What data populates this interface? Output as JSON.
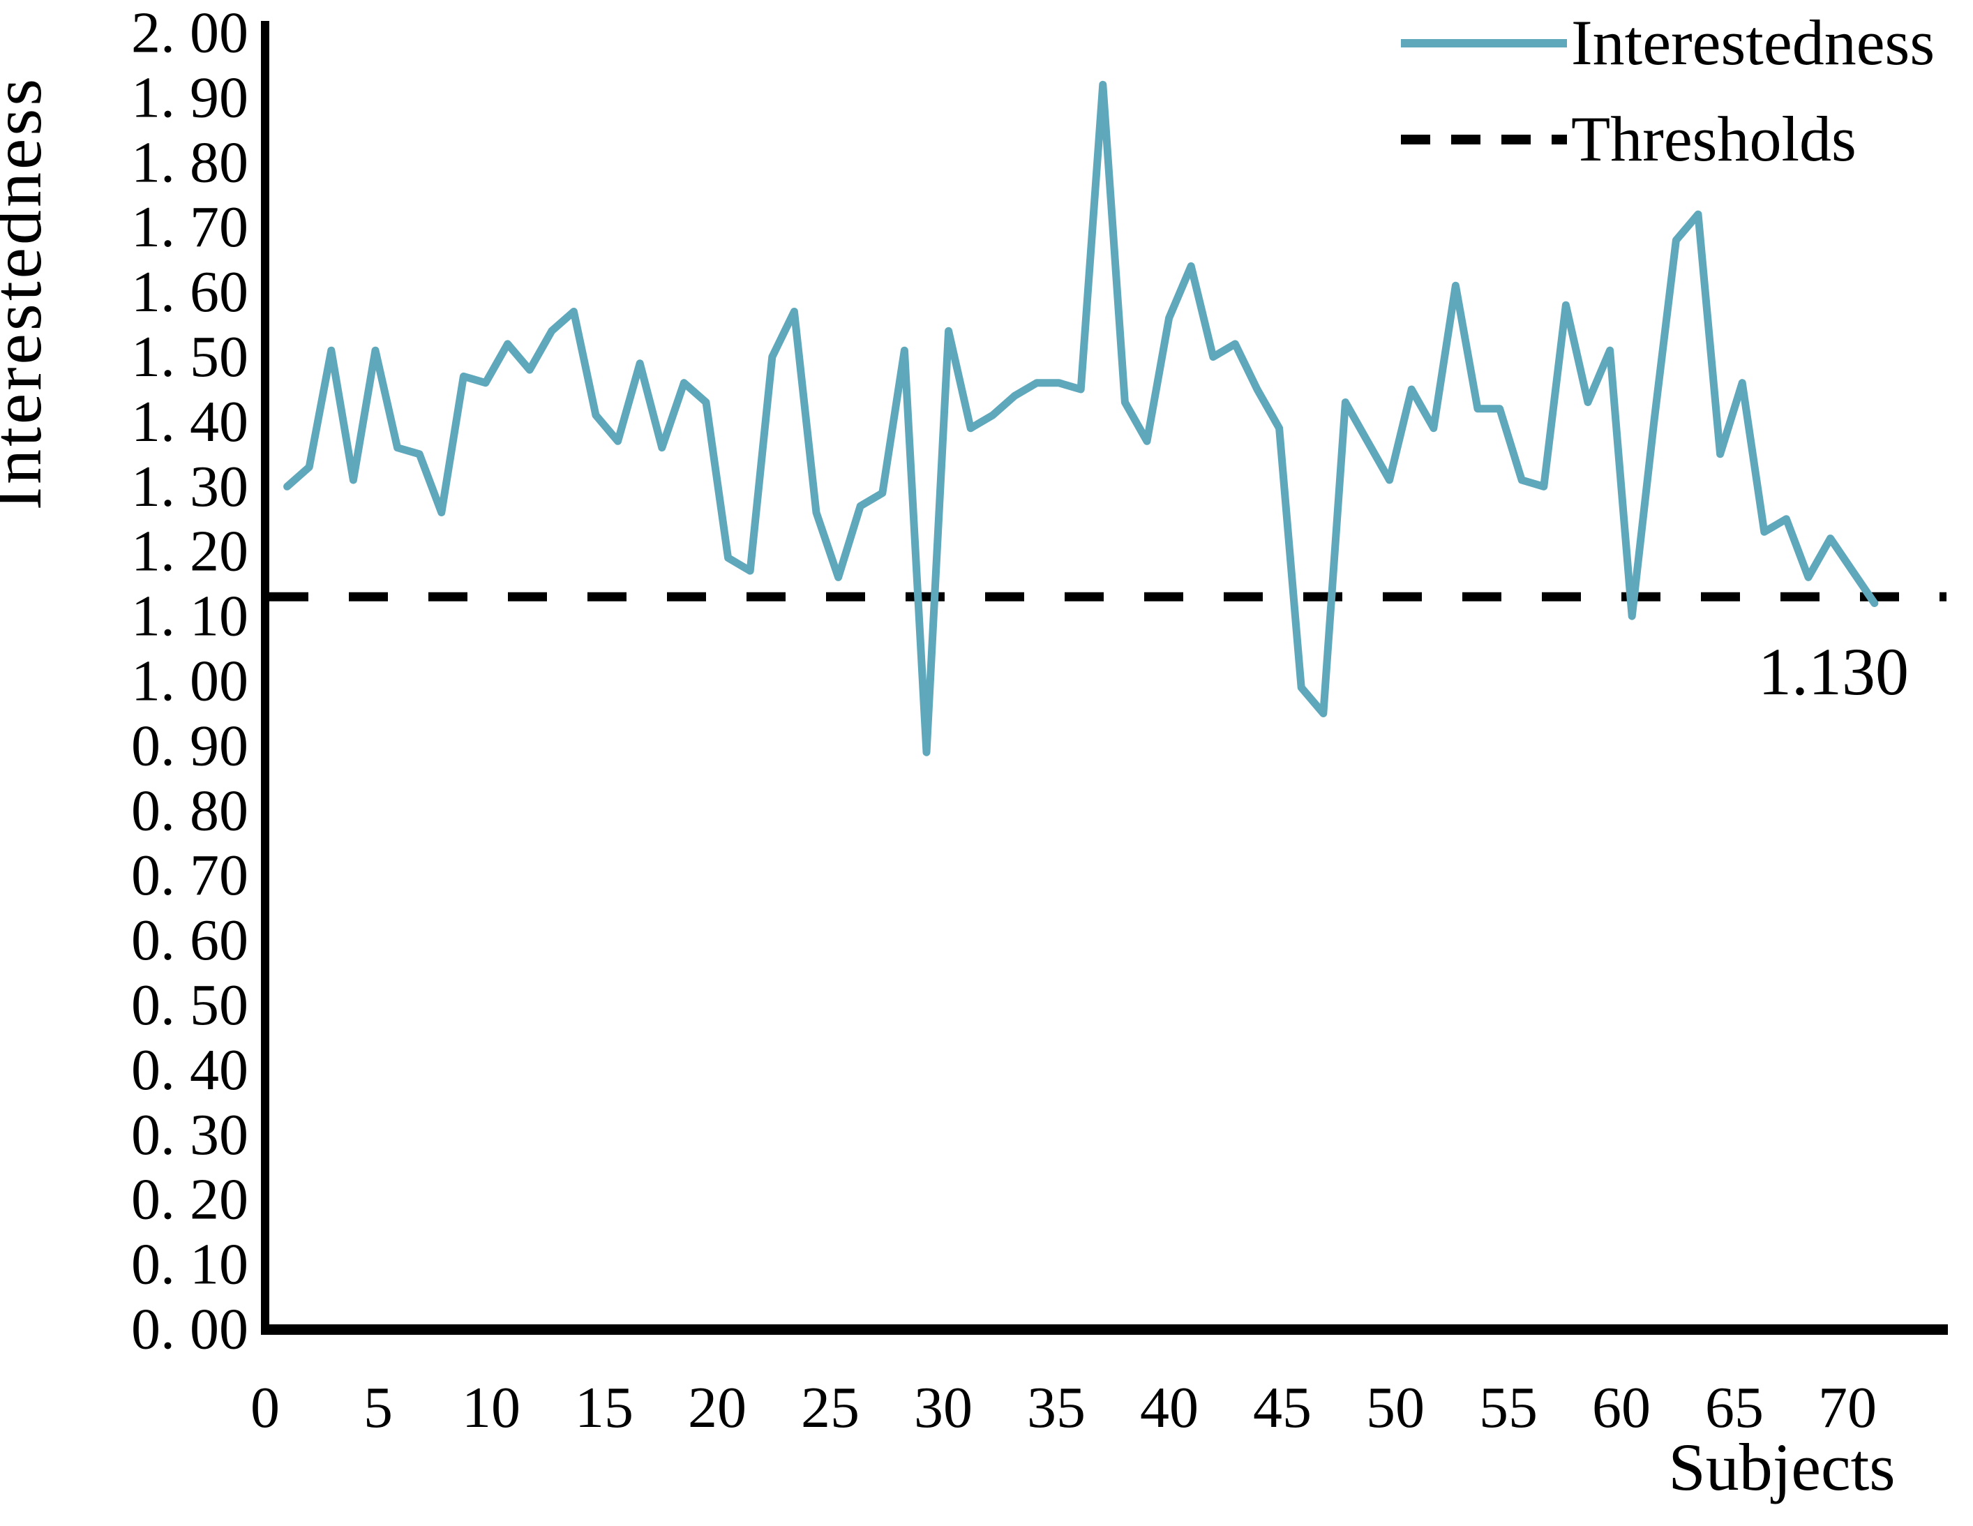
{
  "colors": {
    "series": "#5fa8bc",
    "axis": "#000000",
    "background": "#ffffff",
    "threshold": "#000000"
  },
  "chart_data": {
    "type": "line",
    "title": "",
    "xlabel": "Subjects",
    "ylabel": "Interestedness",
    "ylim": [
      0.0,
      2.0
    ],
    "ytick_step": 0.1,
    "grid": false,
    "legend_position": "top-right",
    "x": [
      1,
      2,
      3,
      4,
      5,
      6,
      7,
      8,
      9,
      10,
      11,
      12,
      13,
      14,
      15,
      16,
      17,
      18,
      19,
      20,
      21,
      22,
      23,
      24,
      25,
      26,
      27,
      28,
      29,
      30,
      31,
      32,
      33,
      34,
      35,
      36,
      37,
      38,
      39,
      40,
      41,
      42,
      43,
      44,
      45,
      46,
      47,
      48,
      49,
      50,
      51,
      52,
      53,
      54,
      55,
      56,
      57,
      58,
      59,
      60,
      61,
      62,
      63,
      64,
      65,
      66,
      67,
      68,
      69,
      70,
      71,
      72,
      73
    ],
    "series": [
      {
        "name": "Interestedness",
        "values": [
          1.3,
          1.33,
          1.51,
          1.31,
          1.51,
          1.36,
          1.35,
          1.26,
          1.47,
          1.46,
          1.52,
          1.48,
          1.54,
          1.57,
          1.41,
          1.37,
          1.49,
          1.36,
          1.46,
          1.43,
          1.19,
          1.17,
          1.5,
          1.57,
          1.26,
          1.16,
          1.27,
          1.29,
          1.51,
          0.89,
          1.54,
          1.39,
          1.41,
          1.44,
          1.46,
          1.46,
          1.45,
          1.92,
          1.43,
          1.37,
          1.56,
          1.64,
          1.5,
          1.52,
          1.45,
          1.39,
          0.99,
          0.95,
          1.43,
          1.37,
          1.31,
          1.45,
          1.39,
          1.61,
          1.42,
          1.42,
          1.31,
          1.3,
          1.58,
          1.43,
          1.51,
          1.1,
          1.4,
          1.68,
          1.72,
          1.35,
          1.46,
          1.23,
          1.25,
          1.16,
          1.22,
          1.17,
          1.12
        ]
      }
    ],
    "threshold": {
      "name": "Thresholds",
      "value": 1.13,
      "label": "1.130"
    },
    "legend": [
      {
        "label": "Interestedness",
        "style": "solid-teal"
      },
      {
        "label": "Thresholds",
        "style": "dashed-black"
      }
    ],
    "y_tick_labels": [
      "2. 00",
      "1. 90",
      "1. 80",
      "1. 70",
      "1. 60",
      "1. 50",
      "1. 40",
      "1. 30",
      "1. 20",
      "1. 10",
      "1. 00",
      "0. 90",
      "0. 80",
      "0. 70",
      "0. 60",
      "0. 50",
      "0. 40",
      "0. 30",
      "0. 20",
      "0. 10",
      "0. 00"
    ],
    "y_tick_values": [
      2.0,
      1.9,
      1.8,
      1.7,
      1.6,
      1.5,
      1.4,
      1.3,
      1.2,
      1.1,
      1.0,
      0.9,
      0.8,
      0.7,
      0.6,
      0.5,
      0.4,
      0.3,
      0.2,
      0.1,
      0.0
    ],
    "x_tick_labels": [
      "0",
      "5",
      "10",
      "15",
      "20",
      "25",
      "30",
      "35",
      "40",
      "45",
      "50",
      "55",
      "60",
      "65",
      "70"
    ],
    "x_tick_values": [
      0,
      5,
      10,
      15,
      20,
      25,
      30,
      35,
      40,
      45,
      50,
      55,
      60,
      65,
      70
    ]
  }
}
